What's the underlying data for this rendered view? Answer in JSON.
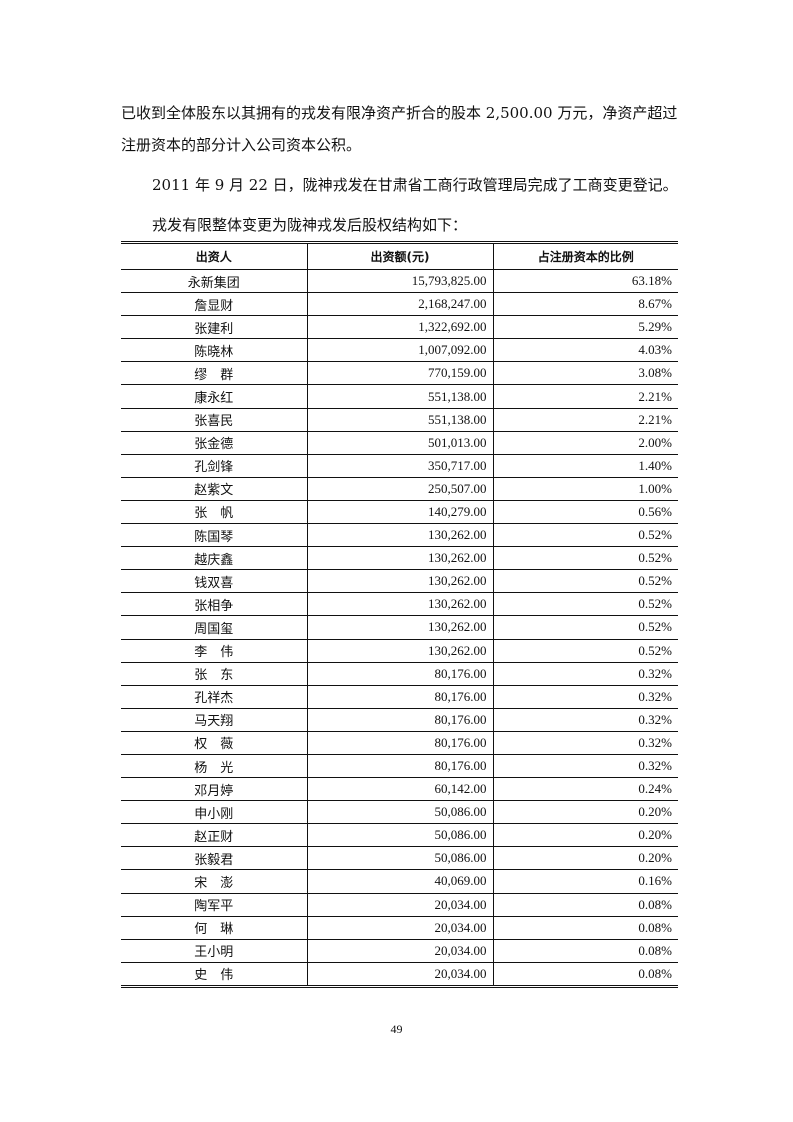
{
  "paragraphs": [
    "已收到全体股东以其拥有的戎发有限净资产折合的股本 2,500.00 万元，净资产超过注册资本的部分计入公司资本公积。",
    "2011 年 9 月 22 日，陇神戎发在甘肃省工商行政管理局完成了工商变更登记。",
    "戎发有限整体变更为陇神戎发后股权结构如下："
  ],
  "table": {
    "headers": [
      "出资人",
      "出资额(元)",
      "占注册资本的比例"
    ],
    "rows": [
      [
        "永新集团",
        "15,793,825.00",
        "63.18%"
      ],
      [
        "詹显财",
        "2,168,247.00",
        "8.67%"
      ],
      [
        "张建利",
        "1,322,692.00",
        "5.29%"
      ],
      [
        "陈晓林",
        "1,007,092.00",
        "4.03%"
      ],
      [
        "缪　群",
        "770,159.00",
        "3.08%"
      ],
      [
        "康永红",
        "551,138.00",
        "2.21%"
      ],
      [
        "张喜民",
        "551,138.00",
        "2.21%"
      ],
      [
        "张金德",
        "501,013.00",
        "2.00%"
      ],
      [
        "孔剑锋",
        "350,717.00",
        "1.40%"
      ],
      [
        "赵紫文",
        "250,507.00",
        "1.00%"
      ],
      [
        "张　帆",
        "140,279.00",
        "0.56%"
      ],
      [
        "陈国琴",
        "130,262.00",
        "0.52%"
      ],
      [
        "越庆鑫",
        "130,262.00",
        "0.52%"
      ],
      [
        "钱双喜",
        "130,262.00",
        "0.52%"
      ],
      [
        "张相争",
        "130,262.00",
        "0.52%"
      ],
      [
        "周国玺",
        "130,262.00",
        "0.52%"
      ],
      [
        "李　伟",
        "130,262.00",
        "0.52%"
      ],
      [
        "张　东",
        "80,176.00",
        "0.32%"
      ],
      [
        "孔祥杰",
        "80,176.00",
        "0.32%"
      ],
      [
        "马天翔",
        "80,176.00",
        "0.32%"
      ],
      [
        "权　薇",
        "80,176.00",
        "0.32%"
      ],
      [
        "杨　光",
        "80,176.00",
        "0.32%"
      ],
      [
        "邓月婷",
        "60,142.00",
        "0.24%"
      ],
      [
        "申小刚",
        "50,086.00",
        "0.20%"
      ],
      [
        "赵正财",
        "50,086.00",
        "0.20%"
      ],
      [
        "张毅君",
        "50,086.00",
        "0.20%"
      ],
      [
        "宋　澎",
        "40,069.00",
        "0.16%"
      ],
      [
        "陶军平",
        "20,034.00",
        "0.08%"
      ],
      [
        "何　琳",
        "20,034.00",
        "0.08%"
      ],
      [
        "王小明",
        "20,034.00",
        "0.08%"
      ],
      [
        "史　伟",
        "20,034.00",
        "0.08%"
      ]
    ]
  },
  "page_number": "49"
}
